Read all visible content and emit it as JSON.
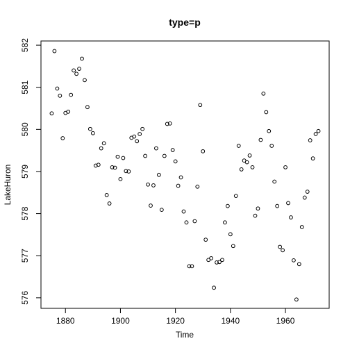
{
  "chart_data": {
    "type": "scatter",
    "title": "type=p",
    "xlabel": "Time",
    "ylabel": "LakeHuron",
    "xlim": [
      1871.1,
      1975.9
    ],
    "ylim": [
      575.75,
      582.1
    ],
    "x_ticks": [
      1880,
      1900,
      1920,
      1940,
      1960
    ],
    "y_ticks": [
      576,
      577,
      578,
      579,
      580,
      581,
      582
    ],
    "grid": false,
    "legend": "none",
    "point_color": "#000000",
    "series": [
      {
        "x": [
          1875,
          1876,
          1877,
          1878,
          1879,
          1880,
          1881,
          1882,
          1883,
          1884,
          1885,
          1886,
          1887,
          1888,
          1889,
          1890,
          1891,
          1892,
          1893,
          1894,
          1895,
          1896,
          1897,
          1898,
          1899,
          1900,
          1901,
          1902,
          1903,
          1904,
          1905,
          1906,
          1907,
          1908,
          1909,
          1910,
          1911,
          1912,
          1913,
          1914,
          1915,
          1916,
          1917,
          1918,
          1919,
          1920,
          1921,
          1922,
          1923,
          1924,
          1925,
          1926,
          1927,
          1928,
          1929,
          1930,
          1931,
          1932,
          1933,
          1934,
          1935,
          1936,
          1937,
          1938,
          1939,
          1940,
          1941,
          1942,
          1943,
          1944,
          1945,
          1946,
          1947,
          1948,
          1949,
          1950,
          1951,
          1952,
          1953,
          1954,
          1955,
          1956,
          1957,
          1958,
          1959,
          1960,
          1961,
          1962,
          1963,
          1964,
          1965,
          1966,
          1967,
          1968,
          1969,
          1970,
          1971,
          1972
        ],
        "y": [
          580.38,
          581.86,
          580.97,
          580.8,
          579.79,
          580.39,
          580.42,
          580.82,
          581.4,
          581.32,
          581.44,
          581.68,
          581.17,
          580.53,
          580.01,
          579.91,
          579.14,
          579.16,
          579.55,
          579.67,
          578.44,
          578.24,
          579.1,
          579.09,
          579.35,
          578.82,
          579.32,
          579.01,
          579.0,
          579.8,
          579.83,
          579.72,
          579.89,
          580.01,
          579.37,
          578.69,
          578.19,
          578.67,
          579.55,
          578.92,
          578.09,
          579.37,
          580.13,
          580.14,
          579.51,
          579.24,
          578.66,
          578.86,
          578.05,
          577.79,
          576.75,
          576.75,
          577.82,
          578.64,
          580.58,
          579.48,
          577.38,
          576.9,
          576.94,
          576.24,
          576.84,
          576.85,
          576.9,
          577.79,
          578.18,
          577.51,
          577.23,
          578.42,
          579.61,
          579.05,
          579.26,
          579.22,
          579.38,
          579.1,
          577.95,
          578.12,
          579.75,
          580.85,
          580.41,
          579.96,
          579.61,
          578.76,
          578.18,
          577.21,
          577.13,
          579.1,
          578.25,
          577.91,
          576.89,
          575.96,
          576.8,
          577.68,
          578.38,
          578.52,
          579.74,
          579.31,
          579.89,
          579.96
        ]
      }
    ]
  }
}
